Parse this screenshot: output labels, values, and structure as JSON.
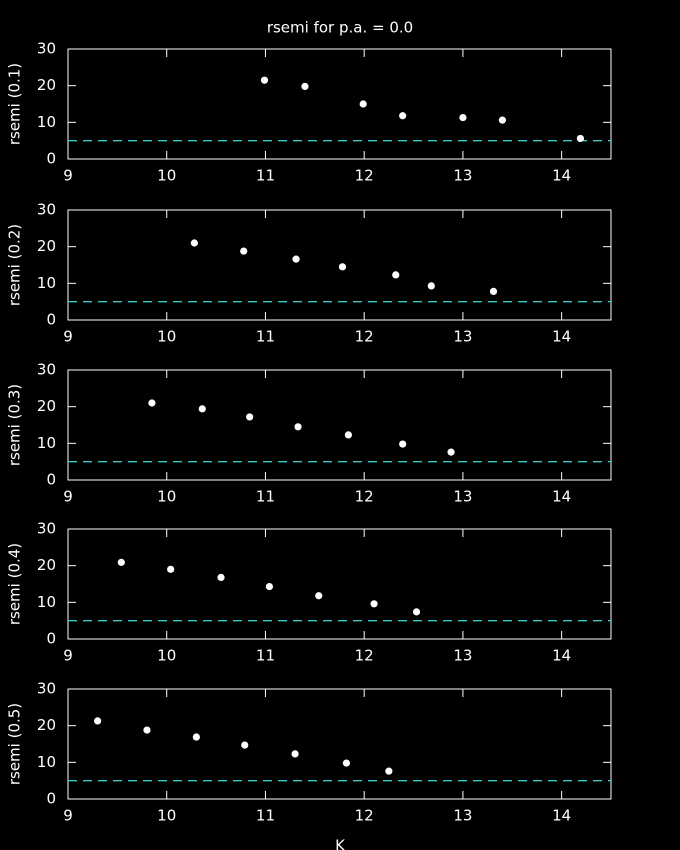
{
  "chart_data": [
    {
      "type": "scatter",
      "title": "rsemi for p.a. = 0.0",
      "ylabel": "rsemi (0.1)",
      "color": "#ffffff",
      "hline": 5,
      "hline_color": "#3cc8c8",
      "x": [
        10.99,
        11.4,
        11.99,
        12.39,
        13.0,
        13.4,
        14.19
      ],
      "values": [
        21.5,
        19.8,
        15.0,
        11.8,
        11.3,
        10.6,
        5.6
      ],
      "xlim": [
        9,
        14.5
      ],
      "xticks": [
        9,
        10,
        11,
        12,
        13,
        14
      ],
      "ylim": [
        0,
        30
      ],
      "yticks": [
        0,
        10,
        20,
        30
      ]
    },
    {
      "type": "scatter",
      "ylabel": "rsemi (0.2)",
      "color": "#ffffff",
      "hline": 5,
      "hline_color": "#3cc8c8",
      "x": [
        10.28,
        10.78,
        11.31,
        11.78,
        12.32,
        12.68,
        13.31
      ],
      "values": [
        21.0,
        18.8,
        16.6,
        14.5,
        12.3,
        9.3,
        7.8
      ],
      "xlim": [
        9,
        14.5
      ],
      "xticks": [
        9,
        10,
        11,
        12,
        13,
        14
      ],
      "ylim": [
        0,
        30
      ],
      "yticks": [
        0,
        10,
        20,
        30
      ]
    },
    {
      "type": "scatter",
      "ylabel": "rsemi (0.3)",
      "color": "#ffffff",
      "hline": 5,
      "hline_color": "#3cc8c8",
      "x": [
        9.85,
        10.36,
        10.84,
        11.33,
        11.84,
        12.39,
        12.88
      ],
      "values": [
        21.0,
        19.4,
        17.2,
        14.5,
        12.3,
        9.8,
        7.6
      ],
      "xlim": [
        9,
        14.5
      ],
      "xticks": [
        9,
        10,
        11,
        12,
        13,
        14
      ],
      "ylim": [
        0,
        30
      ],
      "yticks": [
        0,
        10,
        20,
        30
      ]
    },
    {
      "type": "scatter",
      "ylabel": "rsemi (0.4)",
      "color": "#ffffff",
      "hline": 5,
      "hline_color": "#3cc8c8",
      "x": [
        9.54,
        10.04,
        10.55,
        11.04,
        11.54,
        12.1,
        12.53
      ],
      "values": [
        20.9,
        19.0,
        16.8,
        14.3,
        11.8,
        9.6,
        7.4
      ],
      "xlim": [
        9,
        14.5
      ],
      "xticks": [
        9,
        10,
        11,
        12,
        13,
        14
      ],
      "ylim": [
        0,
        30
      ],
      "yticks": [
        0,
        10,
        20,
        30
      ]
    },
    {
      "type": "scatter",
      "ylabel": "rsemi (0.5)",
      "xlabel": "K",
      "color": "#ffffff",
      "hline": 5,
      "hline_color": "#3cc8c8",
      "x": [
        9.3,
        9.8,
        10.3,
        10.79,
        11.3,
        11.82,
        12.25
      ],
      "values": [
        21.3,
        18.8,
        16.9,
        14.7,
        12.3,
        9.8,
        7.6
      ],
      "xlim": [
        9,
        14.5
      ],
      "xticks": [
        9,
        10,
        11,
        12,
        13,
        14
      ],
      "ylim": [
        0,
        30
      ],
      "yticks": [
        0,
        10,
        20,
        30
      ]
    }
  ]
}
